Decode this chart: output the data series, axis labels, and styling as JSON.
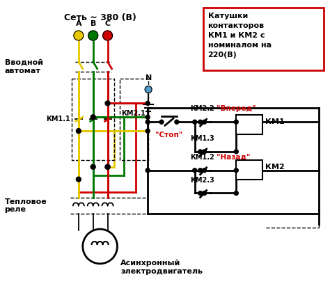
{
  "title": "Сеть ~ 380 (В)",
  "bg_color": "#ffffff",
  "box_text": "Катушки\nконтакторов\nКМ1 и КМ2 с\nноминалом на\n220(В)",
  "label_vvodnoy": "Вводной\nавтомат",
  "label_teplovoe": "Тепловое\nреле",
  "label_motor": "Асинхронный\nэлектродвигатель",
  "label_A": "A",
  "label_B": "B",
  "label_C": "C",
  "label_N": "N",
  "label_stop": "\"Стоп\"",
  "label_vpered": "\"Вперед\"",
  "label_nazad": "\"Назад\"",
  "label_km11": "КМ1.1",
  "label_km21": "КМ2.1",
  "label_km22": "КМ2.2",
  "label_km13": "КМ1.3",
  "label_km12": "КМ1.2",
  "label_km23": "КМ2.3",
  "label_km1_box": "КМ1",
  "label_km2_box": "КМ2",
  "color_yellow": "#e8c800",
  "color_green": "#007700",
  "color_red": "#cc0000",
  "color_black": "#000000",
  "color_blue": "#5599cc",
  "color_red_label": "#cc0000",
  "color_box_border": "#cc0000",
  "lw_wire": 2.0,
  "lw_thin": 1.0
}
